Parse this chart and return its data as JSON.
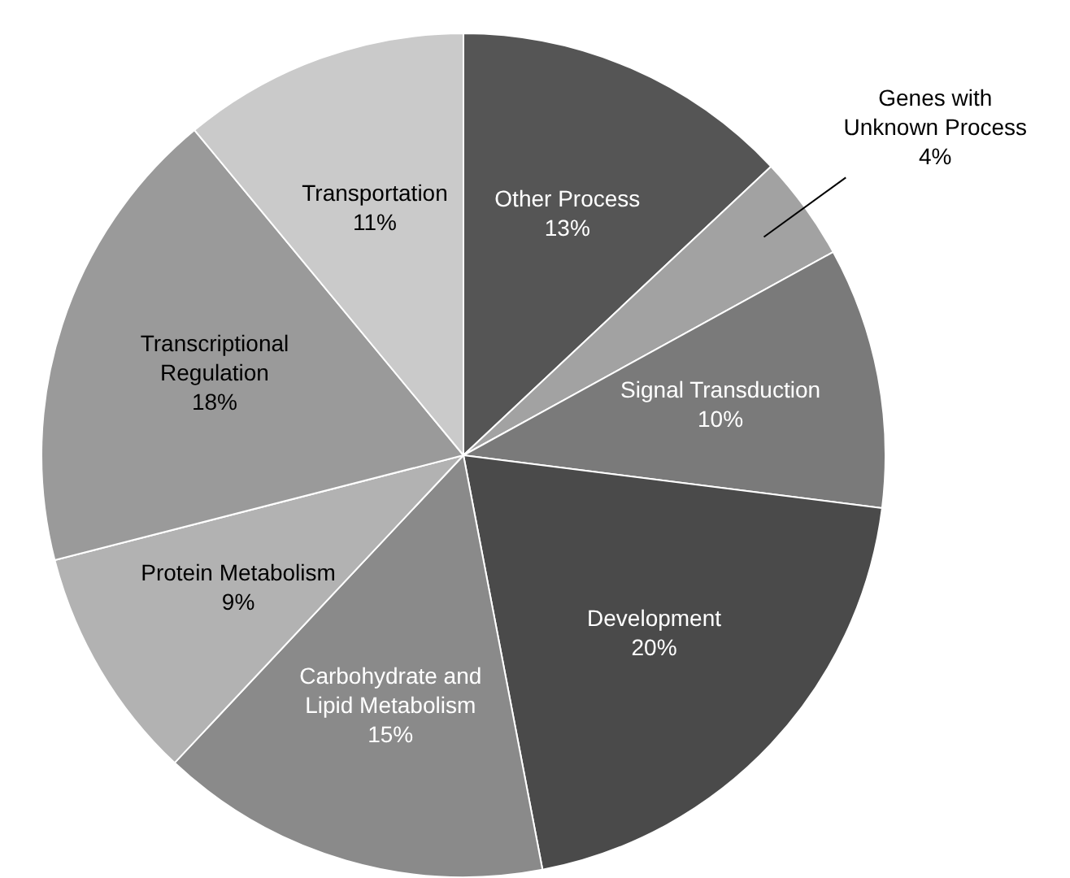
{
  "chart_data": {
    "type": "pie",
    "categories": [
      "Other Process",
      "Genes with Unknown Process",
      "Signal Transduction",
      "Development",
      "Carbohydrate and Lipid Metabolism",
      "Protein Metabolism",
      "Transcriptional Regulation",
      "Transportation"
    ],
    "values": [
      13,
      4,
      10,
      20,
      15,
      9,
      18,
      11
    ],
    "colors": [
      "#555555",
      "#a2a2a2",
      "#7a7a7a",
      "#4a4a4a",
      "#8a8a8a",
      "#b2b2b2",
      "#9a9a9a",
      "#cacaca"
    ],
    "value_labels": [
      "13%",
      "4%",
      "10%",
      "20%",
      "15%",
      "9%",
      "18%",
      "11%"
    ],
    "legend": false
  }
}
